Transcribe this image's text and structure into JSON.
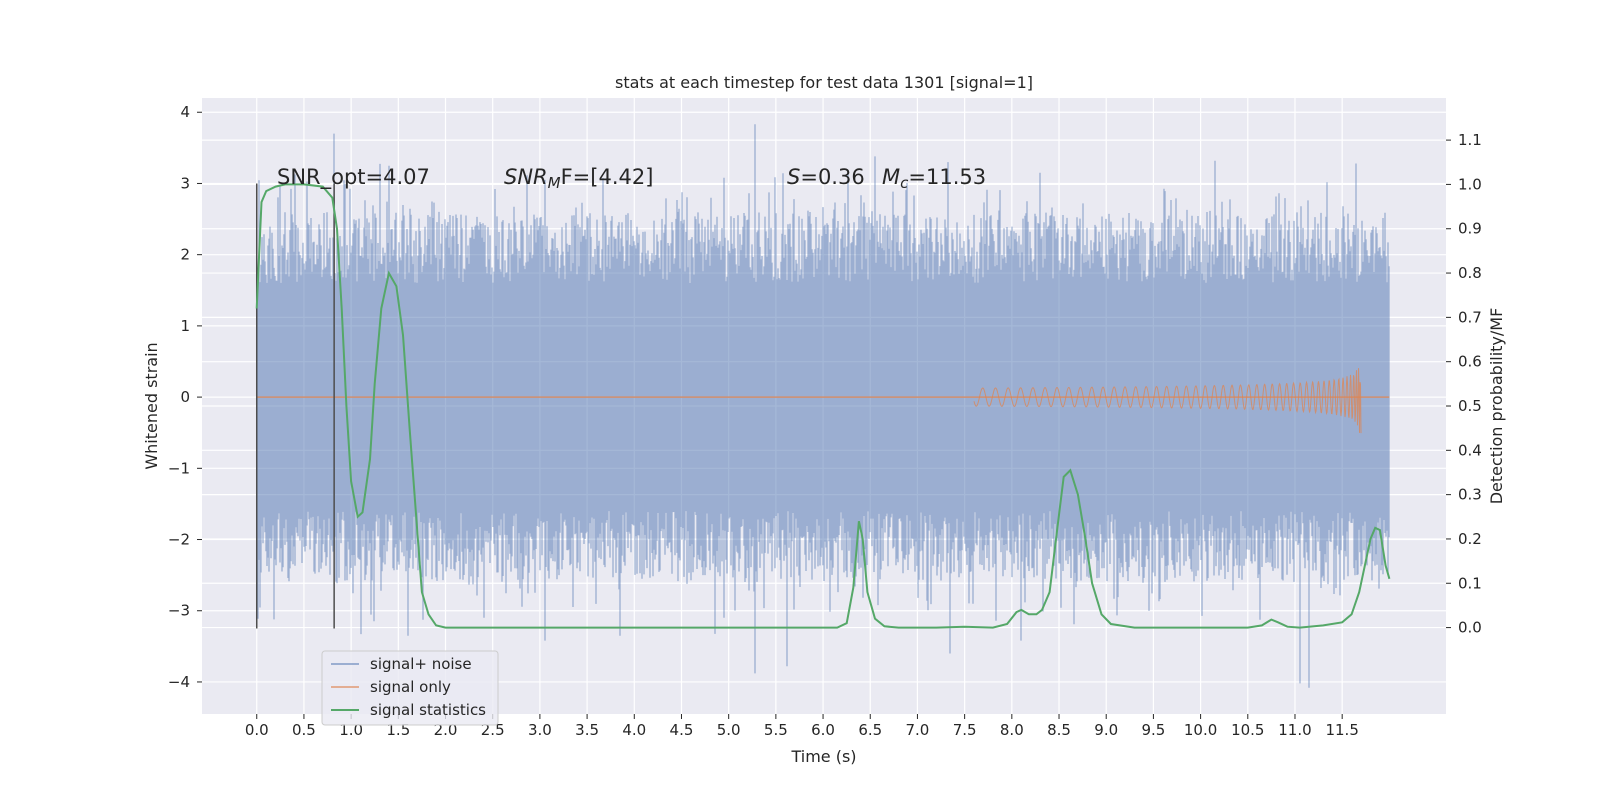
{
  "chart_data": {
    "type": "line",
    "title": "stats at each timestep for test data 1301 [signal=1]",
    "xlabel": "Time (s)",
    "ylabel_left": "Whitened strain",
    "ylabel_right": "Detection probability/MF",
    "xlim": [
      -0.58,
      12.6
    ],
    "ylim_left": [
      -4.45,
      4.2
    ],
    "ylim_right": [
      -0.195,
      1.195
    ],
    "grid": true,
    "legend_position": "lower-left",
    "x_ticks": [
      "0.0",
      "0.5",
      "1.0",
      "1.5",
      "2.0",
      "2.5",
      "3.0",
      "3.5",
      "4.0",
      "4.5",
      "5.0",
      "5.5",
      "6.0",
      "6.5",
      "7.0",
      "7.5",
      "8.0",
      "8.5",
      "9.0",
      "9.5",
      "10.0",
      "10.5",
      "11.0",
      "11.5"
    ],
    "y_ticks_left": [
      "4",
      "3",
      "2",
      "1",
      "0",
      "−1",
      "−2",
      "−3",
      "−4"
    ],
    "y_ticks_right": [
      "1.1",
      "1.0",
      "0.9",
      "0.8",
      "0.7",
      "0.6",
      "0.5",
      "0.4",
      "0.3",
      "0.2",
      "0.1",
      "0.0"
    ],
    "annotations": {
      "snr_opt": "SNR_opt=4.07",
      "snr_mf_sym": "SNR",
      "snr_mf_sub": "M",
      "snr_mf_rest": "F=[4.42]",
      "s_sym": "S",
      "s_rest": "=0.36",
      "mc_sym": "M",
      "mc_sub": "c",
      "mc_rest": "=11.53"
    },
    "vertical_lines": [
      0.0,
      0.82
    ],
    "series": [
      {
        "name": "signal+ noise",
        "color": "#4c72b0",
        "axis": "left",
        "t_range": [
          0.0,
          12.0
        ],
        "envelope_typical": 2.6,
        "peaks": [
          {
            "t": 0.82,
            "y": 3.7
          },
          {
            "t": 5.28,
            "y": 3.83
          },
          {
            "t": 6.55,
            "y": 3.38
          },
          {
            "t": 7.32,
            "y": 3.3
          },
          {
            "t": 10.15,
            "y": 3.32
          },
          {
            "t": 11.65,
            "y": 3.28
          },
          {
            "t": 1.4,
            "y": 3.25
          },
          {
            "t": 3.05,
            "y": 3.05
          },
          {
            "t": 8.3,
            "y": 3.15
          }
        ],
        "troughs": [
          {
            "t": 5.28,
            "y": -3.88
          },
          {
            "t": 5.62,
            "y": -3.78
          },
          {
            "t": 11.05,
            "y": -4.02
          },
          {
            "t": 11.15,
            "y": -4.08
          },
          {
            "t": 7.35,
            "y": -3.6
          },
          {
            "t": 3.05,
            "y": -3.42
          },
          {
            "t": 1.6,
            "y": -3.35
          },
          {
            "t": 3.85,
            "y": -3.35
          },
          {
            "t": 8.1,
            "y": -3.42
          }
        ]
      },
      {
        "name": "signal only",
        "color": "#dd8452",
        "axis": "left",
        "t_range": [
          0.0,
          12.0
        ],
        "chirp_end_time": 11.7,
        "peak_amplitude": 0.72
      },
      {
        "name": "signal statistics",
        "color": "#55a868",
        "axis": "right",
        "points": [
          [
            0.0,
            0.72
          ],
          [
            0.05,
            0.96
          ],
          [
            0.1,
            0.985
          ],
          [
            0.2,
            0.995
          ],
          [
            0.3,
            1.0
          ],
          [
            0.5,
            1.0
          ],
          [
            0.7,
            0.995
          ],
          [
            0.8,
            0.97
          ],
          [
            0.85,
            0.9
          ],
          [
            0.9,
            0.72
          ],
          [
            0.95,
            0.5
          ],
          [
            1.0,
            0.33
          ],
          [
            1.07,
            0.25
          ],
          [
            1.12,
            0.26
          ],
          [
            1.2,
            0.38
          ],
          [
            1.25,
            0.55
          ],
          [
            1.32,
            0.72
          ],
          [
            1.4,
            0.8
          ],
          [
            1.48,
            0.77
          ],
          [
            1.55,
            0.66
          ],
          [
            1.62,
            0.45
          ],
          [
            1.7,
            0.22
          ],
          [
            1.75,
            0.08
          ],
          [
            1.82,
            0.03
          ],
          [
            1.9,
            0.005
          ],
          [
            2.0,
            0.0
          ],
          [
            3.0,
            0.0
          ],
          [
            4.0,
            0.0
          ],
          [
            5.0,
            0.0
          ],
          [
            6.15,
            0.0
          ],
          [
            6.25,
            0.01
          ],
          [
            6.32,
            0.09
          ],
          [
            6.38,
            0.24
          ],
          [
            6.42,
            0.2
          ],
          [
            6.47,
            0.08
          ],
          [
            6.55,
            0.02
          ],
          [
            6.65,
            0.003
          ],
          [
            6.8,
            0.0
          ],
          [
            7.2,
            0.0
          ],
          [
            7.5,
            0.002
          ],
          [
            7.8,
            0.0
          ],
          [
            7.95,
            0.008
          ],
          [
            8.05,
            0.035
          ],
          [
            8.1,
            0.04
          ],
          [
            8.18,
            0.03
          ],
          [
            8.26,
            0.03
          ],
          [
            8.32,
            0.04
          ],
          [
            8.4,
            0.08
          ],
          [
            8.48,
            0.22
          ],
          [
            8.55,
            0.34
          ],
          [
            8.62,
            0.355
          ],
          [
            8.7,
            0.3
          ],
          [
            8.78,
            0.2
          ],
          [
            8.85,
            0.1
          ],
          [
            8.95,
            0.03
          ],
          [
            9.05,
            0.008
          ],
          [
            9.3,
            0.0
          ],
          [
            10.0,
            0.0
          ],
          [
            10.5,
            0.0
          ],
          [
            10.65,
            0.005
          ],
          [
            10.75,
            0.018
          ],
          [
            10.82,
            0.012
          ],
          [
            10.92,
            0.002
          ],
          [
            11.05,
            0.0
          ],
          [
            11.3,
            0.005
          ],
          [
            11.5,
            0.012
          ],
          [
            11.6,
            0.03
          ],
          [
            11.68,
            0.08
          ],
          [
            11.75,
            0.15
          ],
          [
            11.8,
            0.2
          ],
          [
            11.85,
            0.225
          ],
          [
            11.9,
            0.22
          ],
          [
            11.96,
            0.14
          ],
          [
            12.0,
            0.11
          ]
        ]
      }
    ]
  }
}
